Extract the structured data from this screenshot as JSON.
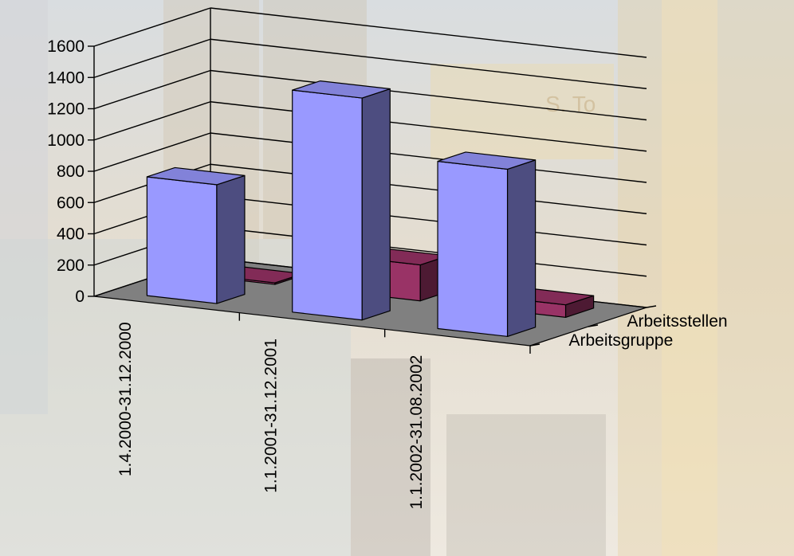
{
  "chart_data": {
    "type": "bar",
    "categories": [
      "1.4.2000-31.12.2000",
      "1.1.2001-31.12.2001",
      "1.1.2002-31.08.2002"
    ],
    "series": [
      {
        "name": "Arbeitsgruppe",
        "values": [
          760,
          1420,
          1070
        ],
        "color": "#9999ff"
      },
      {
        "name": "Arbeitsstellen",
        "values": [
          10,
          230,
          80
        ],
        "color": "#993366"
      }
    ],
    "y_ticks": [
      "0",
      "200",
      "400",
      "600",
      "800",
      "1000",
      "1200",
      "1400",
      "1600"
    ],
    "ylim": [
      0,
      1600
    ],
    "grid": true,
    "floor_color": "#808080"
  }
}
